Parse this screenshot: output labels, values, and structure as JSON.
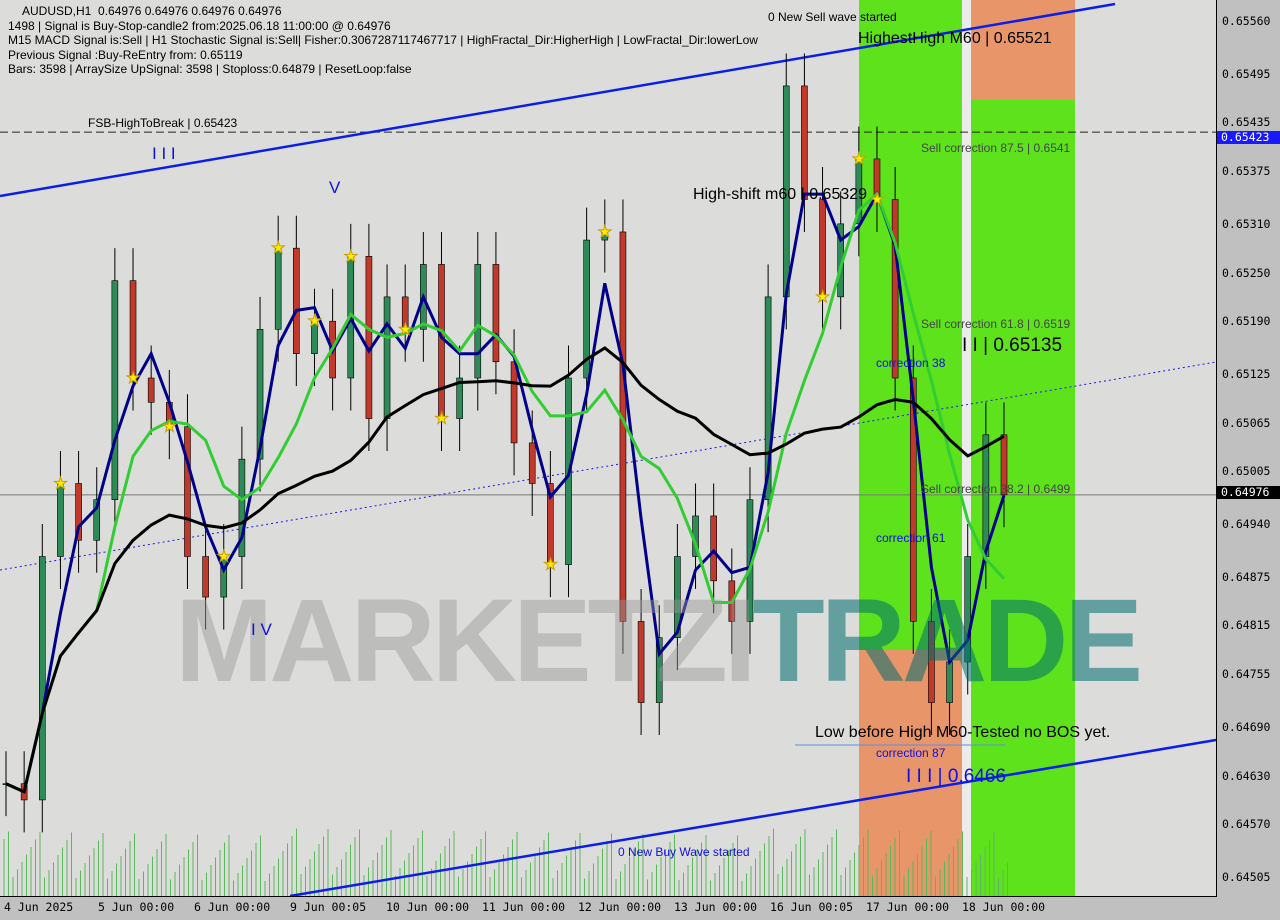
{
  "header": {
    "line1": "AUDUSD,H1  0.64976 0.64976 0.64976 0.64976",
    "line2": "1498 | Signal is Buy-Stop-candle2 from:2025.06.18 11:00:00 @ 0.64976",
    "line3": "M15 MACD Signal is:Sell | H1 Stochastic Signal is:Sell| Fisher:0.3067287117467717 | HighFractal_Dir:HigherHigh | LowFractal_Dir:lowerLow",
    "line4": "Previous Signal :Buy-ReEntry from: 0.65119",
    "line5": "Bars: 3598 | ArraySize UpSignal: 3598 | Stoploss:0.64879 | ResetLoop:false"
  },
  "annotations": {
    "new_sell": "0 New Sell wave started",
    "highest_high": "HighestHigh   M60 | 0.65521",
    "fsb": "FSB-HighToBreak | 0.65423",
    "high_shift": "High-shift m60 | 0.65329",
    "sell_875": "Sell correction 87.5 | 0.6541",
    "sell_618": "Sell correction 61.8 | 0.6519",
    "sell_382": "Sell correction 38.2 | 0.6499",
    "level_ii": "I I | 0.65135",
    "corr38": "correction 38",
    "corr61": "correction 61",
    "corr87": "correction 87",
    "low_before": "Low before High  M60-Tested no BOS yet.",
    "level_iii": "I I I | 0.6466",
    "new_buy": "0 New Buy Wave started",
    "wave_iii": "I I I",
    "wave_v": "V",
    "wave_iv": "I V",
    "watermark": "MARKETZITRADE"
  },
  "price_tags": {
    "fsb": "0.65423",
    "current": "0.64976"
  },
  "colors": {
    "bull": "#2e8b57",
    "bear": "#c0392b",
    "channel": "#0b1ee8",
    "green_zone": "#5ee21b",
    "orange_zone": "#e8956a",
    "ma_fast": "#00008b",
    "ma_mid": "#32cd32",
    "ma_slow": "#000000"
  },
  "chart_data": {
    "type": "candlestick",
    "symbol": "AUDUSD,H1",
    "ylim": [
      0.64475,
      0.6559
    ],
    "yticks": [
      "0.65560",
      "0.65495",
      "0.65435",
      "0.65375",
      "0.65310",
      "0.65250",
      "0.65190",
      "0.65125",
      "0.65065",
      "0.65005",
      "0.64940",
      "0.64875",
      "0.64815",
      "0.64755",
      "0.64690",
      "0.64630",
      "0.64570",
      "0.64505"
    ],
    "xticks": [
      "4 Jun 2025",
      "5 Jun 00:00",
      "6 Jun 00:00",
      "9 Jun 00:05",
      "10 Jun 00:00",
      "11 Jun 00:00",
      "12 Jun 00:00",
      "13 Jun 00:00",
      "16 Jun 00:05",
      "17 Jun 00:00",
      "18 Jun 00:00"
    ],
    "approx_closes": [
      0.6462,
      0.646,
      0.649,
      0.6499,
      0.6492,
      0.6497,
      0.6524,
      0.6512,
      0.6509,
      0.6506,
      0.649,
      0.6485,
      0.649,
      0.6502,
      0.6518,
      0.6528,
      0.6515,
      0.6519,
      0.6512,
      0.6527,
      0.6507,
      0.6522,
      0.6518,
      0.6526,
      0.6507,
      0.6512,
      0.6526,
      0.6514,
      0.6504,
      0.6499,
      0.6489,
      0.6512,
      0.6529,
      0.653,
      0.6482,
      0.6472,
      0.648,
      0.649,
      0.6495,
      0.6487,
      0.6482,
      0.6497,
      0.6522,
      0.6548,
      0.6534,
      0.6522,
      0.6531,
      0.6539,
      0.6534,
      0.6512,
      0.6482,
      0.6472,
      0.6477,
      0.649,
      0.6505,
      0.64976
    ],
    "levels": {
      "fsb_high_to_break": 0.65423,
      "current": 0.64976
    },
    "grid": false
  }
}
